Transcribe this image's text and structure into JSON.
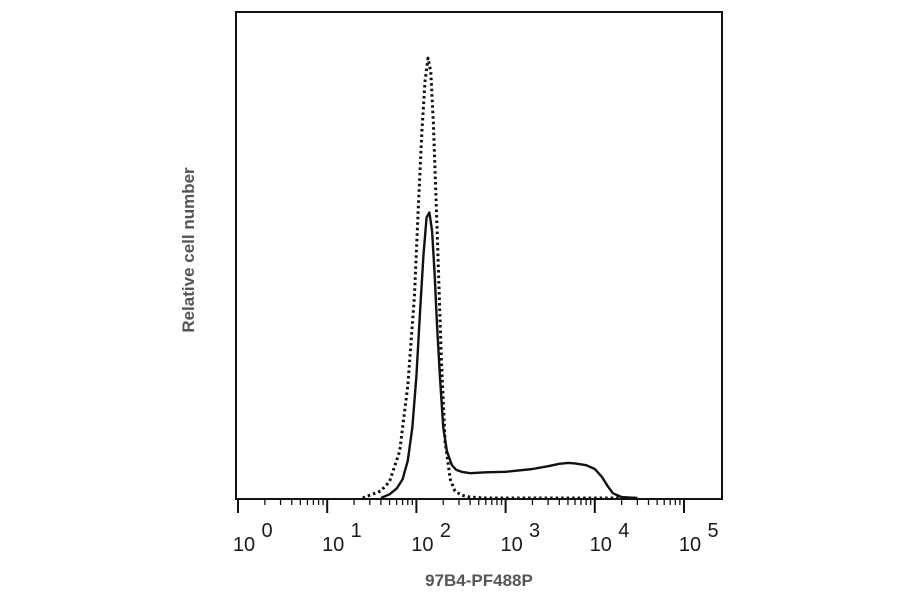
{
  "chart_data": {
    "type": "line",
    "xscale": "log",
    "xlim": [
      1,
      100000
    ],
    "xlabel": "97B4-PF488P",
    "ylabel": "Relative cell number",
    "ylim": [
      0,
      100
    ],
    "grid": false,
    "legend": "none",
    "xticks": [
      {
        "value": 1,
        "base": "10",
        "exp": "0"
      },
      {
        "value": 10,
        "base": "10",
        "exp": "1"
      },
      {
        "value": 100,
        "base": "10",
        "exp": "2"
      },
      {
        "value": 1000,
        "base": "10",
        "exp": "3"
      },
      {
        "value": 10000,
        "base": "10",
        "exp": "4"
      },
      {
        "value": 100000,
        "base": "10",
        "exp": "5"
      }
    ],
    "series": [
      {
        "style": "dotted",
        "x": [
          25,
          30,
          40,
          50,
          65,
          80,
          95,
          105,
          115,
          125,
          135,
          145,
          155,
          170,
          190,
          210,
          240,
          270,
          320,
          400,
          600,
          1000,
          3000,
          10000,
          30000
        ],
        "y": [
          0,
          0.6,
          1.5,
          3.5,
          10,
          24,
          43,
          62,
          78,
          89,
          94,
          91,
          80,
          58,
          30,
          12,
          4,
          1.5,
          0.6,
          0.2,
          0,
          0,
          0,
          0,
          0
        ]
      },
      {
        "style": "solid",
        "x": [
          40,
          50,
          60,
          70,
          80,
          90,
          100,
          110,
          120,
          130,
          140,
          150,
          160,
          170,
          185,
          200,
          220,
          250,
          280,
          320,
          400,
          600,
          1000,
          2000,
          3000,
          4000,
          5000,
          6000,
          8000,
          10000,
          12000,
          14000,
          16000,
          20000,
          30000
        ],
        "y": [
          0,
          0.8,
          2,
          4,
          8,
          15,
          26,
          40,
          52,
          60,
          61,
          57,
          48,
          37,
          25,
          15,
          10,
          7,
          6,
          5.6,
          5.3,
          5.5,
          5.6,
          6.2,
          6.8,
          7.3,
          7.5,
          7.4,
          7,
          6.2,
          4.5,
          2.5,
          1,
          0.2,
          0
        ]
      }
    ]
  }
}
